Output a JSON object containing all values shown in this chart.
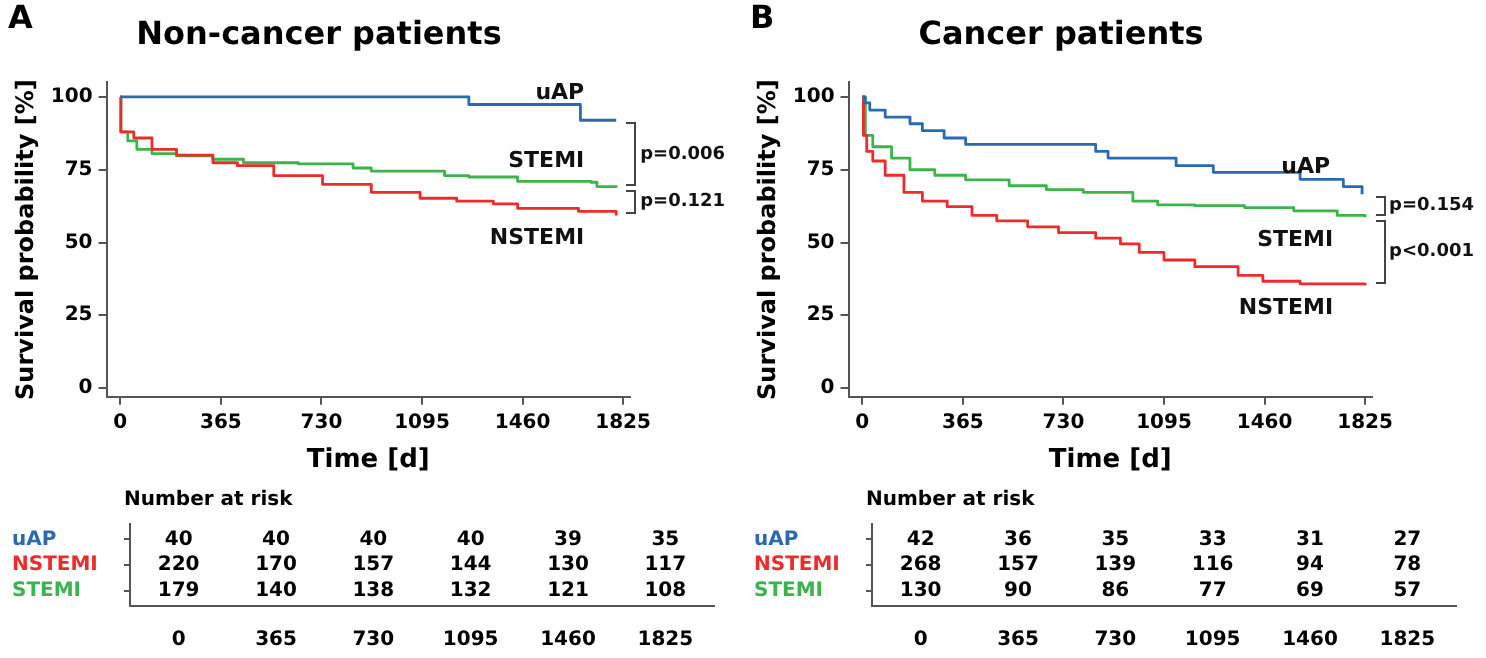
{
  "chart_data": [
    {
      "type": "step",
      "title": "Non-cancer patients",
      "xlabel": "Time [d]",
      "ylabel": "Survival probability [%]",
      "xlim": [
        -50,
        1850
      ],
      "ylim": [
        -3,
        105
      ],
      "xticks": [
        0,
        365,
        730,
        1095,
        1460,
        1825
      ],
      "yticks": [
        0,
        25,
        50,
        75,
        100
      ],
      "grid": false,
      "annotations": [
        "A",
        "p=0.006",
        "p=0.121"
      ],
      "series": [
        {
          "name": "uAP",
          "color": "#2a6ab0",
          "x": [
            0,
            1265,
            1670,
            1800
          ],
          "values": [
            100,
            97.4,
            92,
            92
          ]
        },
        {
          "name": "NSTEMI",
          "color": "#ee2b2b",
          "x": [
            0,
            2,
            49,
            115,
            204,
            336,
            425,
            557,
            734,
            911,
            1088,
            1221,
            1354,
            1442,
            1663,
            1800
          ],
          "values": [
            100,
            88,
            85.9,
            82,
            80,
            77.4,
            76.4,
            73,
            70,
            67.2,
            65.2,
            64.2,
            63.3,
            61.7,
            60.7,
            59.3
          ]
        },
        {
          "name": "STEMI",
          "color": "#3cb44b",
          "x": [
            0,
            2,
            27,
            60,
            115,
            204,
            336,
            447,
            646,
            845,
            911,
            1177,
            1265,
            1442,
            1708,
            1730,
            1800
          ],
          "values": [
            100,
            88,
            84.9,
            82,
            80.5,
            79.8,
            78.6,
            77.4,
            77,
            75.6,
            74.5,
            73,
            72.5,
            71,
            70.7,
            69.2,
            68.8
          ]
        }
      ]
    },
    {
      "type": "heatmap",
      "title": "Number at risk",
      "categories": [
        "0",
        "365",
        "730",
        "1095",
        "1460",
        "1825"
      ],
      "y_categories": [
        "uAP",
        "NSTEMI",
        "STEMI"
      ],
      "data_labels": true,
      "cells": [
        [
          40,
          40,
          40,
          40,
          39,
          35
        ],
        [
          220,
          170,
          157,
          144,
          130,
          117
        ],
        [
          179,
          140,
          138,
          132,
          121,
          108
        ]
      ]
    },
    {
      "type": "step",
      "title": "Cancer patients",
      "xlabel": "Time [d]",
      "ylabel": "Survival probability [%]",
      "xlim": [
        -50,
        1850
      ],
      "ylim": [
        -3,
        105
      ],
      "xticks": [
        0,
        365,
        730,
        1095,
        1460,
        1825
      ],
      "yticks": [
        0,
        25,
        50,
        75,
        100
      ],
      "grid": false,
      "annotations": [
        "B",
        "p=0.154",
        "p<0.001"
      ],
      "series": [
        {
          "name": "uAP",
          "color": "#2a6ab0",
          "x": [
            0,
            10,
            27,
            83,
            173,
            218,
            297,
            375,
            847,
            892,
            1139,
            1274,
            1589,
            1746,
            1814
          ],
          "values": [
            100,
            98,
            95.5,
            93.1,
            90.8,
            88.4,
            85.9,
            83.7,
            81.3,
            79,
            76.4,
            74.1,
            71.7,
            69.2,
            66.6
          ]
        },
        {
          "name": "NSTEMI",
          "color": "#ee2b2b",
          "x": [
            0,
            4,
            16,
            38,
            83,
            151,
            218,
            308,
            398,
            488,
            600,
            712,
            847,
            937,
            1005,
            1095,
            1207,
            1364,
            1454,
            1589,
            1825
          ],
          "values": [
            100,
            86.8,
            81.3,
            78,
            73.1,
            67.2,
            64.2,
            62.3,
            59.3,
            57.4,
            55.4,
            53.4,
            51.5,
            49.5,
            46.6,
            44,
            41.7,
            38.7,
            36.7,
            35.8,
            35.2
          ]
        },
        {
          "name": "STEMI",
          "color": "#3cb44b",
          "x": [
            0,
            11,
            38,
            106,
            173,
            263,
            375,
            533,
            668,
            802,
            982,
            1072,
            1207,
            1387,
            1566,
            1724,
            1825
          ],
          "values": [
            100,
            86.8,
            82.9,
            79,
            75,
            73.1,
            71.5,
            69.5,
            68.2,
            67.2,
            64.2,
            62.9,
            62.7,
            62,
            60.9,
            59.3,
            58.7
          ]
        }
      ]
    },
    {
      "type": "heatmap",
      "title": "Number at risk",
      "categories": [
        "0",
        "365",
        "730",
        "1095",
        "1460",
        "1825"
      ],
      "y_categories": [
        "uAP",
        "NSTEMI",
        "STEMI"
      ],
      "data_labels": true,
      "cells": [
        [
          42,
          36,
          35,
          33,
          31,
          27
        ],
        [
          268,
          157,
          139,
          116,
          94,
          78
        ],
        [
          130,
          90,
          86,
          77,
          69,
          57
        ]
      ]
    }
  ]
}
